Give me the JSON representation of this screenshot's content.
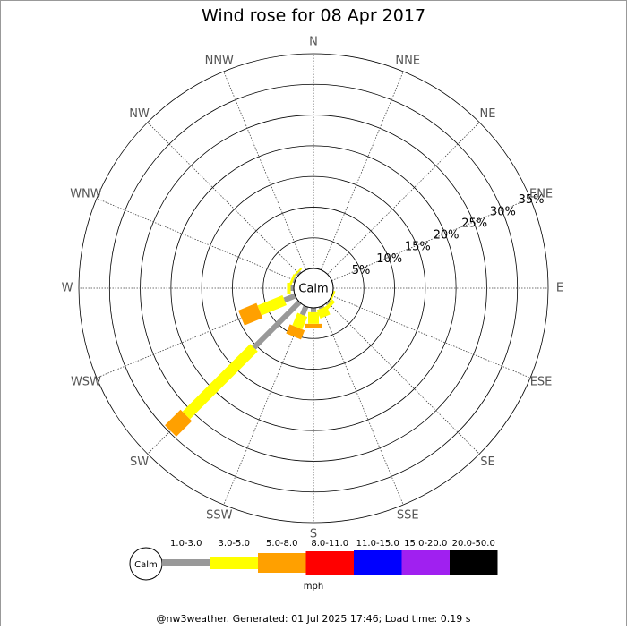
{
  "chart_data": {
    "type": "wind_rose",
    "title": "Wind rose for 08 Apr 2017",
    "center_label": "Calm",
    "categories": [
      "N",
      "NNE",
      "NE",
      "ENE",
      "E",
      "ESE",
      "SE",
      "SSE",
      "S",
      "SSW",
      "SW",
      "WSW",
      "W",
      "WNW",
      "NW",
      "NNW"
    ],
    "rlim": [
      0,
      35
    ],
    "rticks": [
      {
        "value": 5,
        "label": "5%"
      },
      {
        "value": 10,
        "label": "10%"
      },
      {
        "value": 15,
        "label": "15%"
      },
      {
        "value": 20,
        "label": "20%"
      },
      {
        "value": 25,
        "label": "25%"
      },
      {
        "value": 30,
        "label": "30%"
      },
      {
        "value": 35,
        "label": "35%"
      }
    ],
    "series": [
      {
        "name": "1.0-3.0",
        "color": "#999999",
        "values": [
          0,
          0,
          0,
          0,
          0,
          0,
          0.3,
          0.3,
          0.7,
          1.5,
          10.5,
          1.9,
          0.5,
          0.3,
          0.3,
          0
        ]
      },
      {
        "name": "3.0-5.0",
        "color": "#ffff00",
        "values": [
          0,
          0,
          0,
          0,
          0,
          0.3,
          0.6,
          1.5,
          1.9,
          2.2,
          15.6,
          4.4,
          0.6,
          0.4,
          0.3,
          0
        ]
      },
      {
        "name": "5.0-8.0",
        "color": "#ffa000",
        "values": [
          0,
          0,
          0,
          0,
          0,
          0,
          0,
          0,
          0.7,
          1.6,
          3.6,
          3.2,
          0,
          0,
          0,
          0
        ]
      },
      {
        "name": "8.0-11.0",
        "color": "#ff0000",
        "values": [
          0,
          0,
          0,
          0,
          0,
          0,
          0,
          0,
          0,
          0,
          0,
          0,
          0,
          0,
          0,
          0
        ]
      },
      {
        "name": "11.0-15.0",
        "color": "#0000ff",
        "values": [
          0,
          0,
          0,
          0,
          0,
          0,
          0,
          0,
          0,
          0,
          0,
          0,
          0,
          0,
          0,
          0
        ]
      },
      {
        "name": "15.0-20.0",
        "color": "#a020f0",
        "values": [
          0,
          0,
          0,
          0,
          0,
          0,
          0,
          0,
          0,
          0,
          0,
          0,
          0,
          0,
          0,
          0
        ]
      },
      {
        "name": "20.0-50.0",
        "color": "#000000",
        "values": [
          0,
          0,
          0,
          0,
          0,
          0,
          0,
          0,
          0,
          0,
          0,
          0,
          0,
          0,
          0,
          0
        ]
      }
    ],
    "unit_label": "mph",
    "footer": "@nw3weather. Generated: 01 Jul 2025 17:46; Load time: 0.19 s"
  }
}
